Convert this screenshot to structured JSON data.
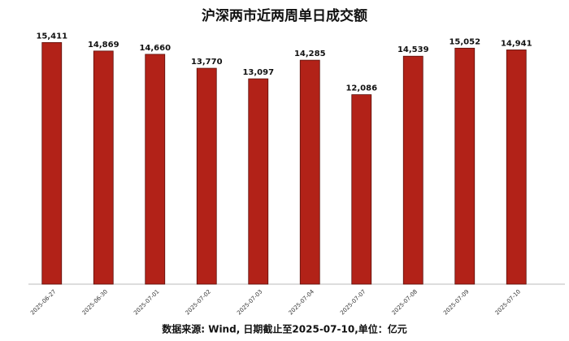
{
  "chart_data": {
    "type": "bar",
    "title": "沪深两市近两周单日成交额",
    "source": "数据来源: Wind, 日期截止至2025-07-10,单位：亿元",
    "categories": [
      "2025-06-27",
      "2025-06-30",
      "2025-07-01",
      "2025-07-02",
      "2025-07-03",
      "2025-07-04",
      "2025-07-07",
      "2025-07-08",
      "2025-07-09",
      "2025-07-10"
    ],
    "values": [
      15411,
      14869,
      14660,
      13770,
      13097,
      14285,
      12086,
      14539,
      15052,
      14941
    ],
    "value_labels": [
      "15,411",
      "14,869",
      "14,660",
      "13,770",
      "13,097",
      "14,285",
      "12,086",
      "14,539",
      "15,052",
      "14,941"
    ],
    "color": "#b22218",
    "ylim": [
      0,
      16000
    ]
  }
}
